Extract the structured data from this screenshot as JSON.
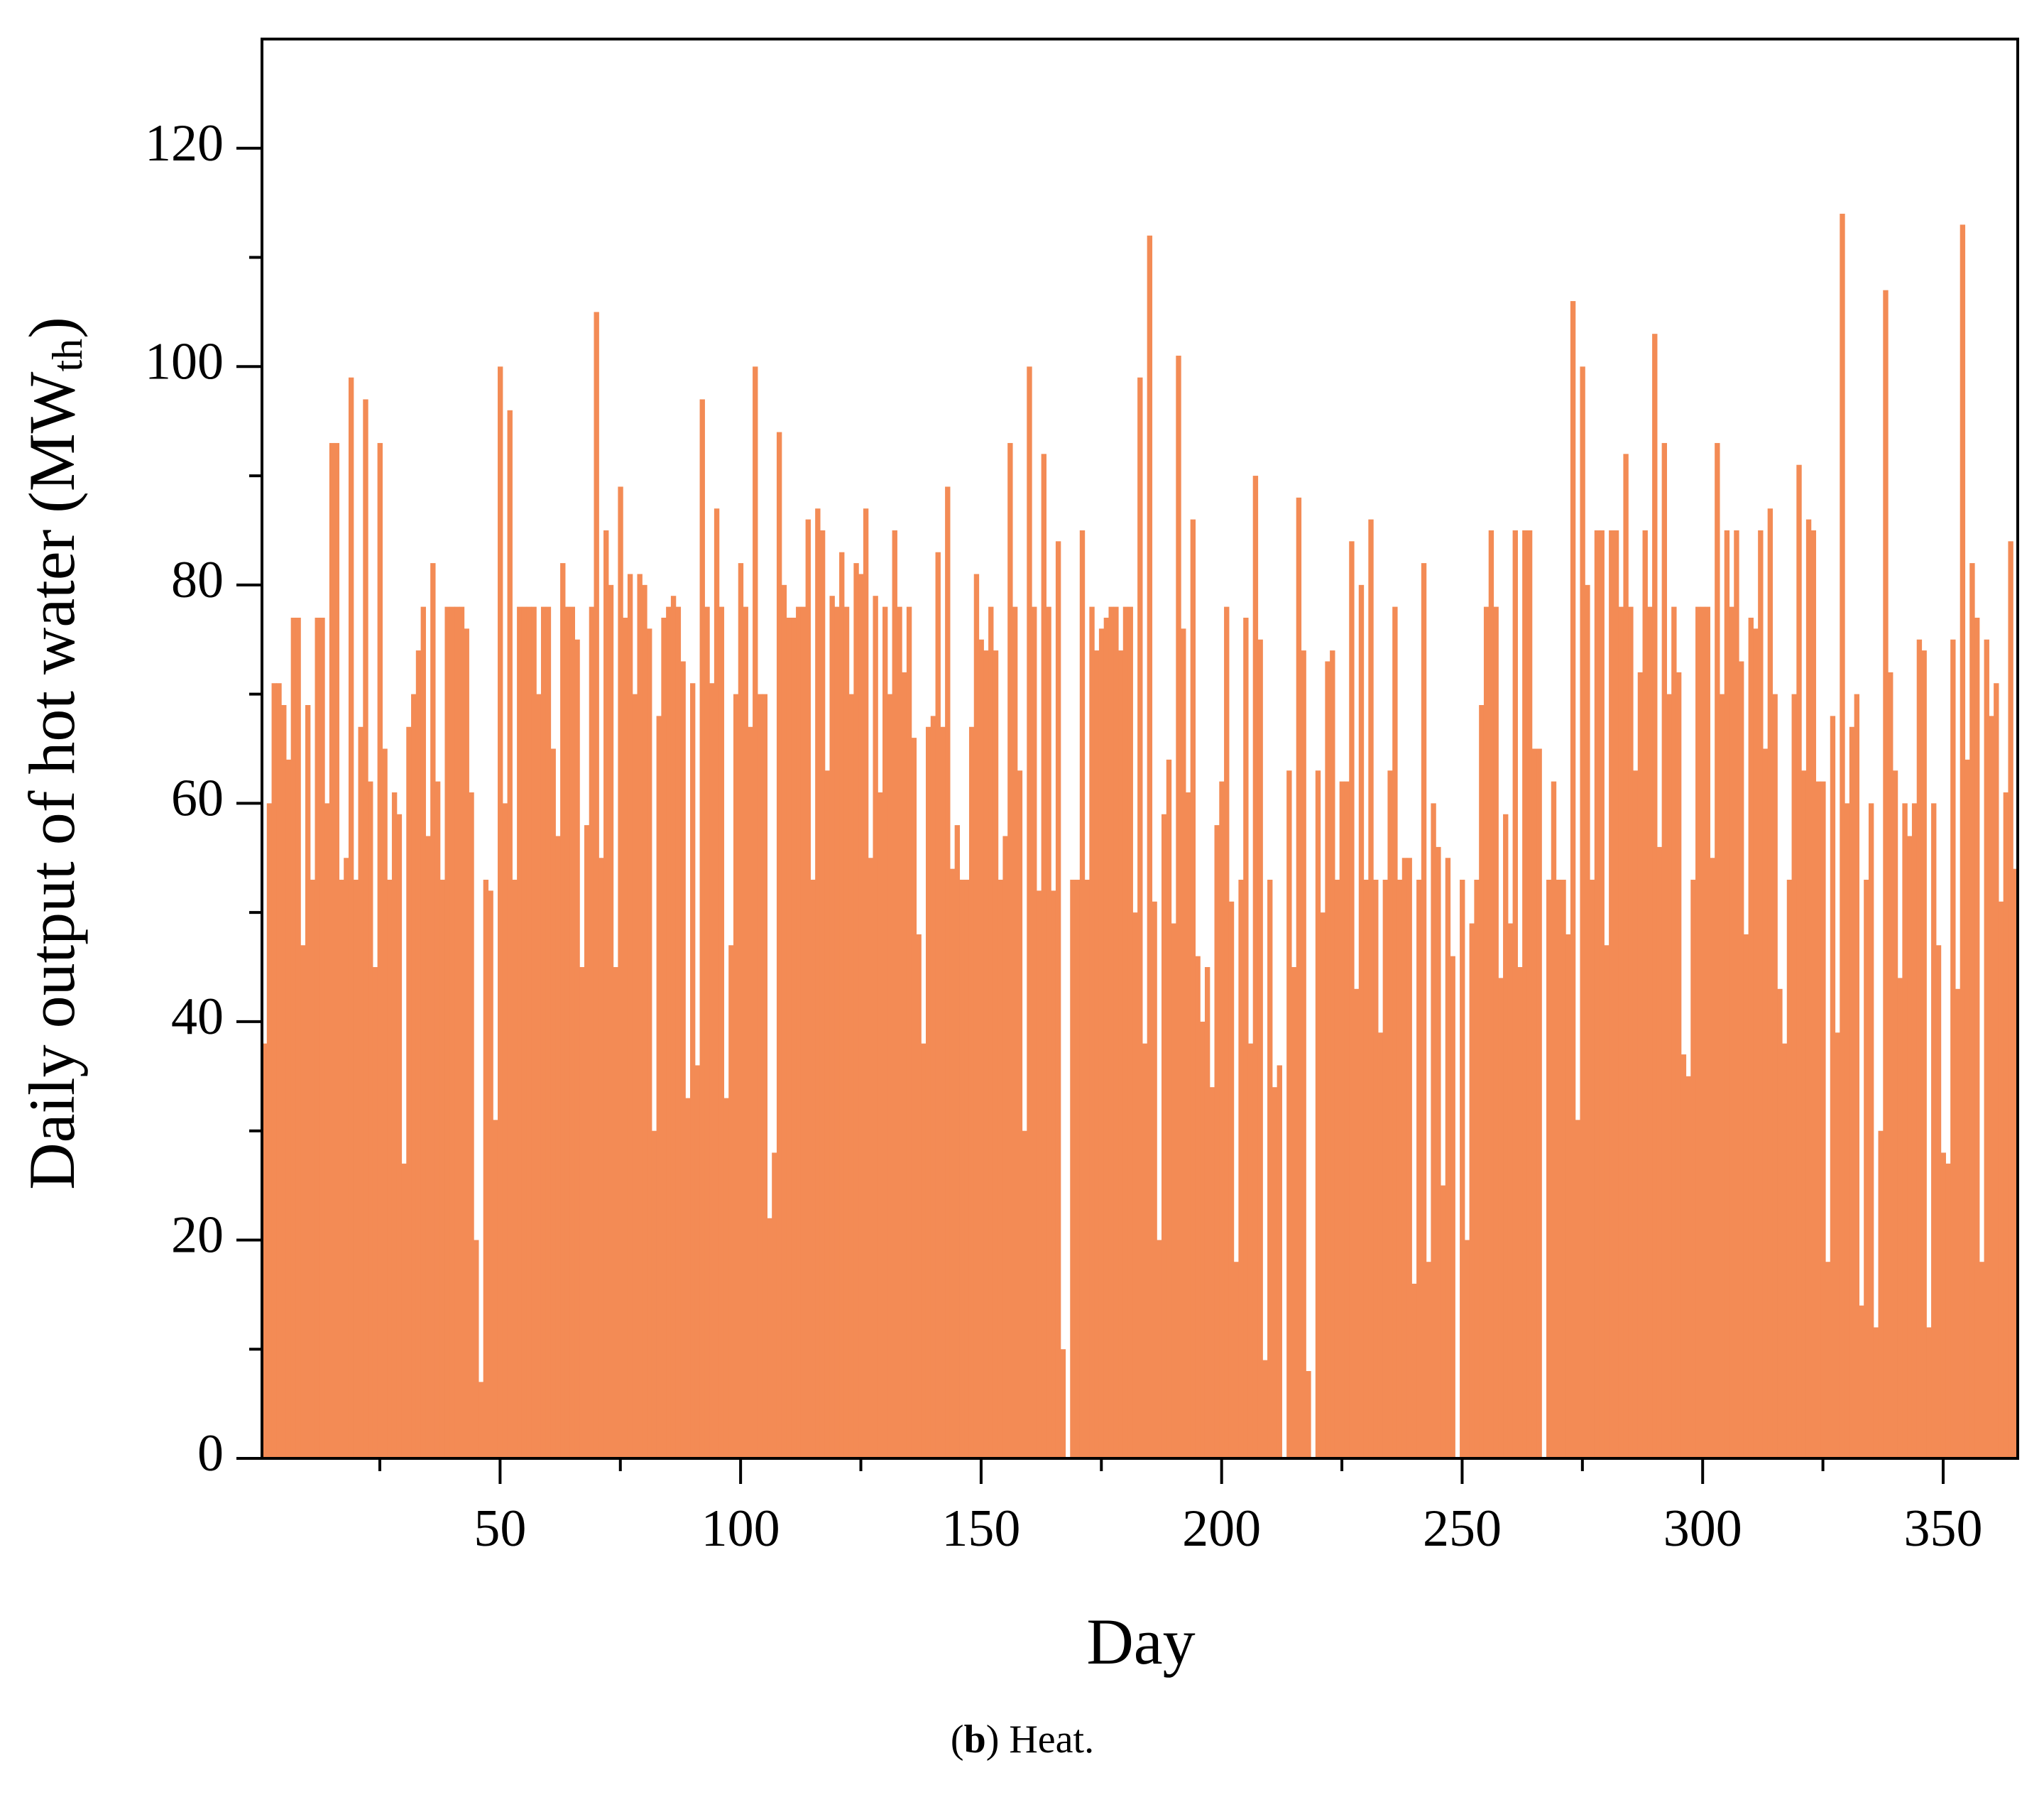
{
  "chart_data": {
    "type": "bar",
    "xlabel": "Day",
    "ylabel": [
      "Daily output of hot water (MW",
      "th",
      ")"
    ],
    "caption": [
      "(",
      "b",
      ") Heat."
    ],
    "color": "#f38b55",
    "xlim": [
      0.5,
      365.5
    ],
    "xticks": [
      50,
      100,
      150,
      200,
      250,
      300,
      350
    ],
    "xminorticks": [
      25,
      75,
      125,
      175,
      225,
      275,
      325
    ],
    "ylim": [
      0,
      130
    ],
    "yticks": [
      0,
      20,
      40,
      60,
      80,
      100,
      120
    ],
    "yminorticks": [
      10,
      30,
      50,
      70,
      90,
      110
    ],
    "values": [
      38,
      60,
      71,
      71,
      69,
      64,
      77,
      77,
      47,
      69,
      53,
      77,
      77,
      60,
      93,
      93,
      53,
      55,
      99,
      53,
      67,
      97,
      62,
      45,
      93,
      65,
      53,
      61,
      59,
      27,
      67,
      70,
      74,
      78,
      57,
      82,
      62,
      53,
      78,
      78,
      78,
      78,
      76,
      61,
      20,
      7,
      53,
      52,
      31,
      100,
      60,
      96,
      53,
      78,
      78,
      78,
      78,
      70,
      78,
      78,
      65,
      57,
      82,
      78,
      78,
      75,
      45,
      58,
      78,
      105,
      55,
      85,
      80,
      45,
      89,
      77,
      81,
      70,
      81,
      80,
      76,
      30,
      68,
      77,
      78,
      79,
      78,
      73,
      33,
      71,
      36,
      97,
      78,
      71,
      87,
      78,
      33,
      47,
      70,
      82,
      78,
      67,
      100,
      70,
      70,
      22,
      28,
      94,
      80,
      77,
      77,
      78,
      78,
      86,
      53,
      87,
      85,
      63,
      79,
      78,
      83,
      78,
      70,
      82,
      81,
      87,
      55,
      79,
      61,
      78,
      70,
      85,
      78,
      72,
      78,
      66,
      48,
      38,
      67,
      68,
      83,
      67,
      89,
      54,
      58,
      53,
      53,
      67,
      81,
      75,
      74,
      78,
      74,
      53,
      57,
      93,
      78,
      63,
      30,
      100,
      78,
      52,
      92,
      78,
      52,
      84,
      10,
      0,
      53,
      53,
      85,
      53,
      78,
      74,
      76,
      77,
      78,
      78,
      74,
      78,
      78,
      50,
      99,
      38,
      112,
      51,
      20,
      59,
      64,
      49,
      101,
      76,
      61,
      86,
      46,
      40,
      45,
      34,
      58,
      62,
      78,
      51,
      18,
      53,
      77,
      38,
      90,
      75,
      9,
      53,
      34,
      36,
      0,
      63,
      45,
      88,
      74,
      8,
      0,
      63,
      50,
      73,
      74,
      53,
      62,
      62,
      84,
      43,
      80,
      53,
      86,
      53,
      39,
      53,
      63,
      78,
      53,
      55,
      55,
      16,
      53,
      82,
      18,
      60,
      56,
      25,
      55,
      46,
      0,
      53,
      20,
      49,
      53,
      69,
      78,
      85,
      78,
      44,
      59,
      49,
      85,
      45,
      85,
      85,
      65,
      65,
      0,
      53,
      62,
      53,
      53,
      48,
      106,
      31,
      100,
      80,
      53,
      85,
      85,
      47,
      85,
      85,
      78,
      92,
      78,
      63,
      72,
      85,
      78,
      103,
      56,
      93,
      70,
      78,
      72,
      37,
      35,
      53,
      78,
      78,
      78,
      55,
      93,
      70,
      85,
      78,
      85,
      73,
      48,
      77,
      76,
      85,
      65,
      87,
      70,
      43,
      38,
      53,
      70,
      91,
      63,
      86,
      85,
      62,
      62,
      18,
      68,
      39,
      114,
      60,
      67,
      70,
      14,
      53,
      60,
      12,
      30,
      107,
      72,
      63,
      44,
      60,
      57,
      60,
      75,
      74,
      12,
      60,
      47,
      28,
      27,
      75,
      43,
      113,
      64,
      82,
      77,
      18,
      75,
      68,
      71,
      51,
      61,
      84,
      54
    ]
  }
}
